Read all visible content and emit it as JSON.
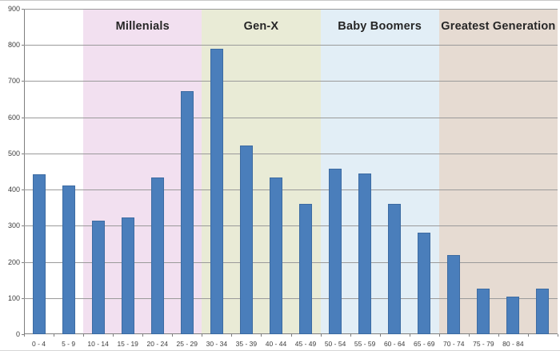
{
  "chart_data": {
    "type": "bar",
    "title": "",
    "categories": [
      "0 - 4",
      "5 - 9",
      "10 - 14",
      "15 - 19",
      "20 - 24",
      "25 - 29",
      "30 - 34",
      "35 - 39",
      "40 - 44",
      "45 - 49",
      "50 - 54",
      "55 - 59",
      "60 - 64",
      "65 - 69",
      "70 - 74",
      "75 - 79",
      "80 - 84",
      ""
    ],
    "values": [
      443,
      412,
      314,
      322,
      434,
      672,
      790,
      521,
      434,
      361,
      458,
      444,
      361,
      280,
      219,
      127,
      105,
      127
    ],
    "xlabel": "",
    "ylabel": "",
    "ylim": [
      0,
      900
    ],
    "ytick_step": 100,
    "ytick_labels": [
      "0",
      "100",
      "200",
      "300",
      "400",
      "500",
      "600",
      "700",
      "800",
      "900"
    ],
    "grid": true,
    "legend": "none",
    "bar_color": "#4A7EBB",
    "bands": [
      {
        "label": "",
        "start_index": 0,
        "span": 2,
        "color": "#FFFFFF"
      },
      {
        "label": "Millenials",
        "start_index": 2,
        "span": 4,
        "color": "#F2E0F0"
      },
      {
        "label": "Gen-X",
        "start_index": 6,
        "span": 4,
        "color": "#E9EBD6"
      },
      {
        "label": "Baby Boomers",
        "start_index": 10,
        "span": 4,
        "color": "#E2EEF6"
      },
      {
        "label": "Greatest Generation",
        "start_index": 14,
        "span": 4,
        "color": "#E6DBD2"
      }
    ]
  },
  "colors": {
    "background": "#FFFFFF",
    "bar": "#4A7EBB",
    "gridline": "#9A9A9A",
    "axis": "#7F7F7F",
    "band_title_text": "#262626",
    "tick_label_text": "#3C3C3C"
  }
}
